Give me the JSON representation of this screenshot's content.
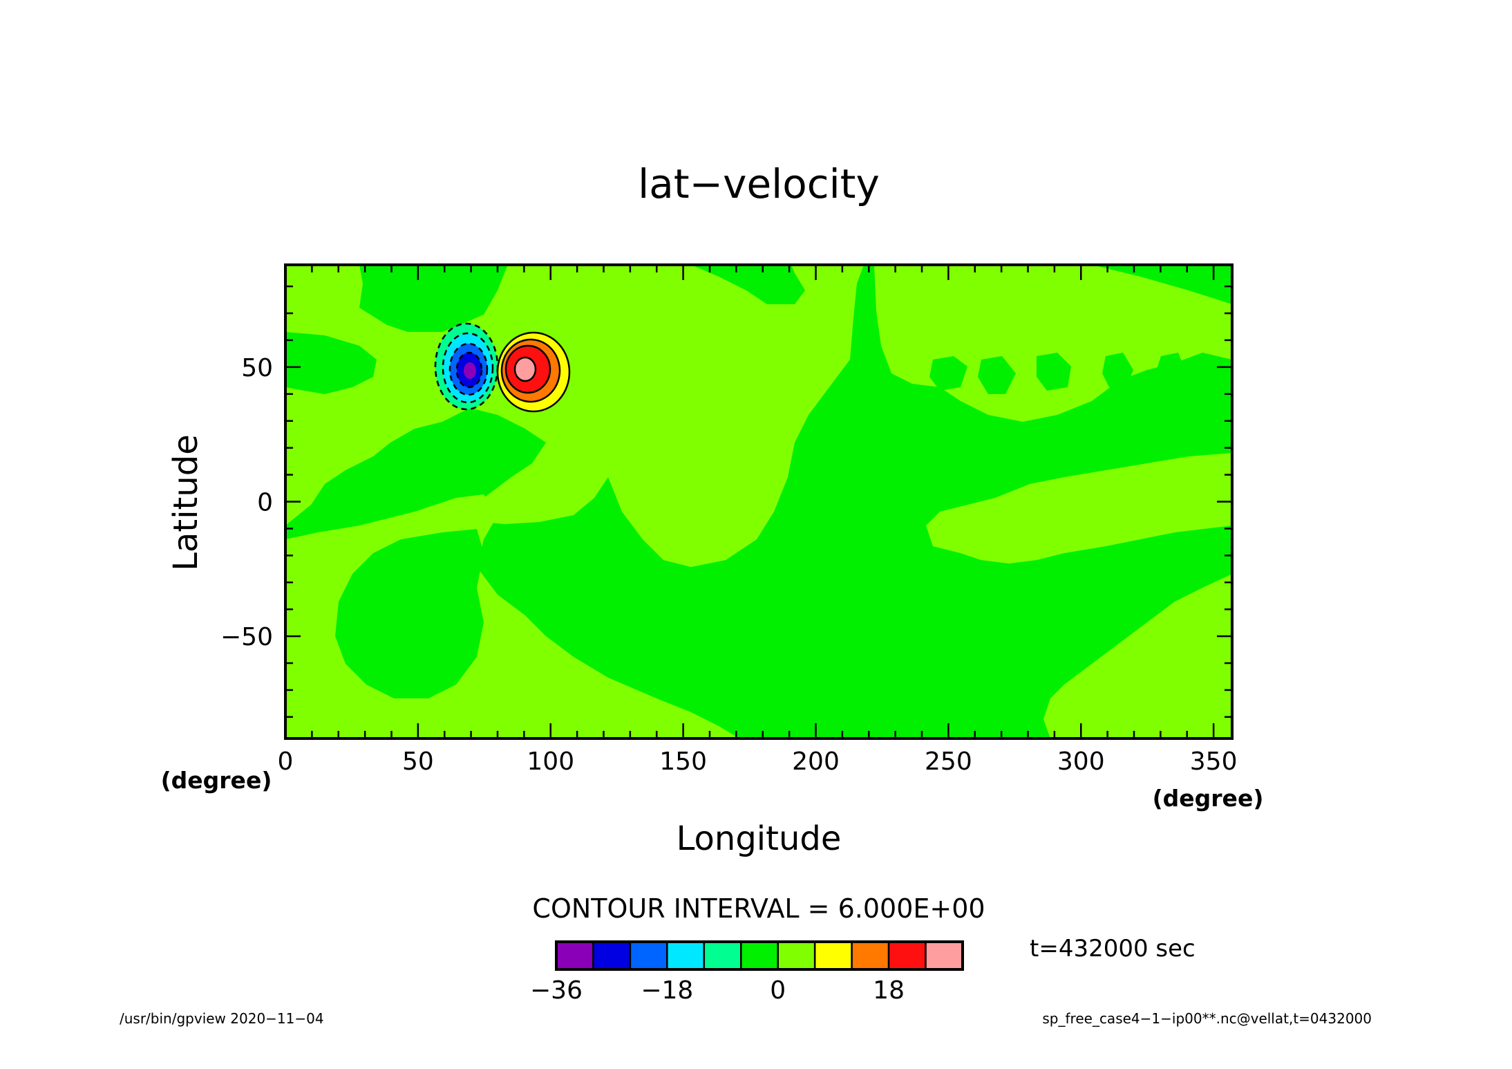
{
  "figure": {
    "title": "lat−velocity",
    "contour_interval_label": "CONTOUR INTERVAL = 6.000E+00",
    "time_label": "t=432000 sec",
    "footer_left": "/usr/bin/gpview   2020−11−04",
    "footer_right": "sp_free_case4−1−ip00**.nc@vellat,t=0432000"
  },
  "chart_data": {
    "type": "heatmap",
    "title": "lat−velocity",
    "xlabel": "Longitude",
    "ylabel": "Latitude",
    "xunit": "(degree)",
    "yunit": "(degree)",
    "xlim": [
      0,
      357
    ],
    "ylim": [
      -88,
      88
    ],
    "xticks": [
      0,
      50,
      100,
      150,
      200,
      250,
      300,
      350
    ],
    "yticks": [
      -50,
      0,
      50
    ],
    "xtick_labels": [
      "0",
      "50",
      "100",
      "150",
      "200",
      "250",
      "300",
      "350"
    ],
    "ytick_labels": [
      "−50",
      "0",
      "50"
    ],
    "contour_interval": 6,
    "colorbar": {
      "bounds": [
        -36,
        -30,
        -24,
        -18,
        -12,
        -6,
        0,
        6,
        12,
        18,
        24,
        30
      ],
      "colors": [
        "#8a00b8",
        "#0000e0",
        "#0064ff",
        "#00e8ff",
        "#00ff90",
        "#00f000",
        "#80ff00",
        "#ffff00",
        "#ff7800",
        "#ff1010",
        "#ff9e9e"
      ],
      "tick_values": [
        -36,
        -18,
        0,
        18
      ],
      "tick_labels": [
        "−36",
        "−18",
        "0",
        "18"
      ]
    },
    "features": [
      {
        "kind": "minimum",
        "lon": 69,
        "lat": 49,
        "value": -30
      },
      {
        "kind": "maximum",
        "lon": 89,
        "lat": 49,
        "value": 30
      }
    ]
  }
}
